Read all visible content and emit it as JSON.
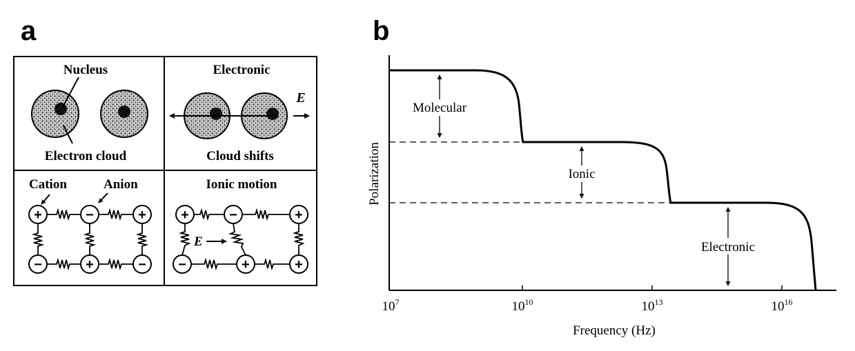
{
  "panel_a": {
    "letter": "a",
    "cells": {
      "top_left": {
        "top_label": "Nucleus",
        "bottom_label": "Electron cloud"
      },
      "top_right": {
        "title": "Electronic",
        "bottom_label": "Cloud shifts",
        "field_label": "E"
      },
      "bottom_left": {
        "cation_label": "Cation",
        "anion_label": "Anion"
      },
      "bottom_right": {
        "title": "Ionic motion",
        "field_label": "E"
      }
    },
    "signs": {
      "plus": "+",
      "minus": "−"
    }
  },
  "panel_b": {
    "letter": "b",
    "chart_data": {
      "type": "line",
      "xscale": "log",
      "xlabel": "Frequency (Hz)",
      "ylabel": "Polarization",
      "xlim": [
        10000000,
        10000000000000000
      ],
      "x_ticks": [
        {
          "base": "10",
          "exp": "7"
        },
        {
          "base": "10",
          "exp": "10"
        },
        {
          "base": "10",
          "exp": "13"
        },
        {
          "base": "10",
          "exp": "16"
        }
      ],
      "step_levels": [
        "Molecular",
        "Ionic",
        "Electronic"
      ],
      "annotations": {
        "molecular": "Molecular",
        "ionic": "Ionic",
        "electronic": "Electronic"
      }
    }
  }
}
